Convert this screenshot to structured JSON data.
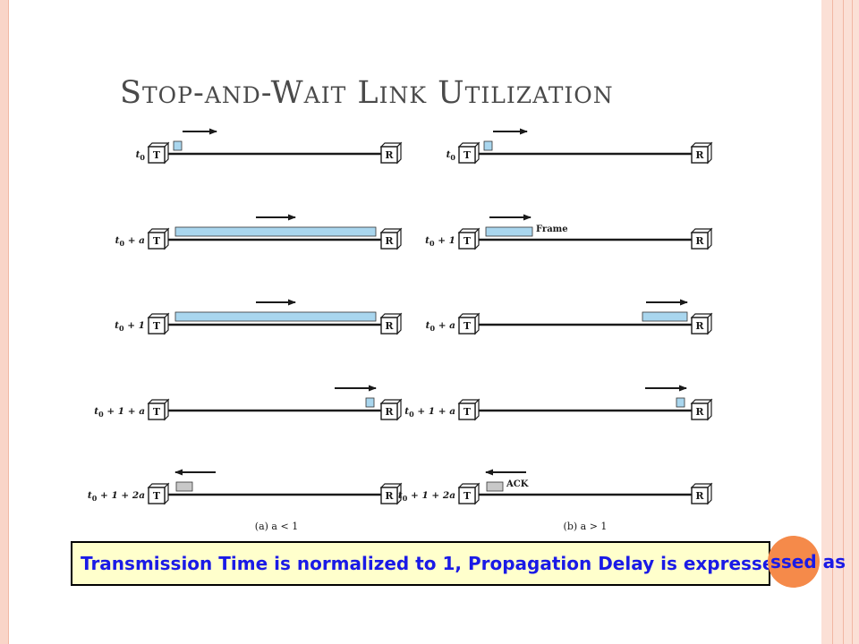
{
  "slide": {
    "title": "Stop-and-Wait Link Utilization",
    "note": "Transmission Time is normalized to 1, Propagation Delay is expressed as",
    "note_overflow": "ssed as"
  },
  "diagram": {
    "transmitter_label": "T",
    "receiver_label": "R",
    "frame_label": "Frame",
    "ack_label": "ACK",
    "colors": {
      "frame": "#a9d6ee",
      "ack": "#c8c8c8",
      "line": "#1a1a1a",
      "note_text": "#1a1ae6",
      "note_bg": "#ffffcc",
      "accent_dot": "#f58a4a"
    },
    "panels": [
      {
        "caption": "(a) a < 1",
        "rows": [
          {
            "time": "t0",
            "packet": "frame",
            "extent": "leading-edge-at-T",
            "direction": "right"
          },
          {
            "time": "t0 + a",
            "packet": "frame",
            "extent": "fills-link",
            "direction": "right"
          },
          {
            "time": "t0 + 1",
            "packet": "frame",
            "extent": "fills-link",
            "direction": "right"
          },
          {
            "time": "t0 + 1 + a",
            "packet": "frame",
            "extent": "trailing-edge-at-R",
            "direction": "right"
          },
          {
            "time": "t0 + 1 + 2a",
            "packet": "ack",
            "extent": "ack-at-T",
            "direction": "left"
          }
        ]
      },
      {
        "caption": "(b) a > 1",
        "rows": [
          {
            "time": "t0",
            "packet": "frame",
            "extent": "leading-edge-at-T",
            "direction": "right"
          },
          {
            "time": "t0 + 1",
            "packet": "frame",
            "extent": "near-T",
            "direction": "right",
            "label": "Frame"
          },
          {
            "time": "t0 + a",
            "packet": "frame",
            "extent": "arriving-at-R",
            "direction": "right"
          },
          {
            "time": "t0 + 1 + a",
            "packet": "frame",
            "extent": "trailing-edge-at-R",
            "direction": "right"
          },
          {
            "time": "t0 + 1 + 2a",
            "packet": "ack",
            "extent": "ack-at-T",
            "direction": "left",
            "label": "ACK"
          }
        ]
      }
    ]
  }
}
